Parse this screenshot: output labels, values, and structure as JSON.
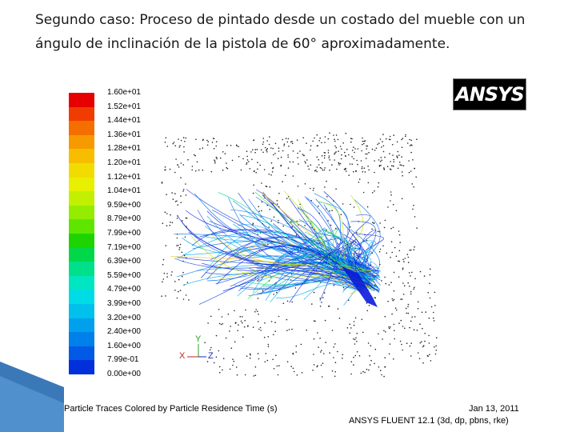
{
  "slide": {
    "title_line1": "Segundo caso: Proceso de pintado desde un costado del mueble  con un",
    "title_line2": "ángulo de inclinación de la pistola de 60° aproximadamente."
  },
  "logo": {
    "text": "ANSYS"
  },
  "colorbar": {
    "labels": [
      "1.60e+01",
      "1.52e+01",
      "1.44e+01",
      "1.36e+01",
      "1.28e+01",
      "1.20e+01",
      "1.12e+01",
      "1.04e+01",
      "9.59e+00",
      "8.79e+00",
      "7.99e+00",
      "7.19e+00",
      "6.39e+00",
      "5.59e+00",
      "4.79e+00",
      "3.99e+00",
      "3.20e+00",
      "2.40e+00",
      "1.60e+00",
      "7.99e-01",
      "0.00e+00"
    ],
    "colors": [
      "#e60000",
      "#f03c00",
      "#f56e00",
      "#f79a00",
      "#f7be00",
      "#f2dc00",
      "#e6f000",
      "#c3f000",
      "#94ec00",
      "#5ee600",
      "#1ed400",
      "#00d84a",
      "#00e08a",
      "#00e6c0",
      "#00dce6",
      "#00c0ec",
      "#00a0ec",
      "#0080ea",
      "#005ae6",
      "#0030dc"
    ]
  },
  "axes": {
    "y": "Y",
    "x": "X",
    "z": "Z"
  },
  "footer": {
    "description": "Particle Traces Colored by Particle Residence Time (s)",
    "date": "Jan 13, 2011",
    "version": "ANSYS FLUENT 12.1 (3d, dp, pbns, rke)"
  }
}
